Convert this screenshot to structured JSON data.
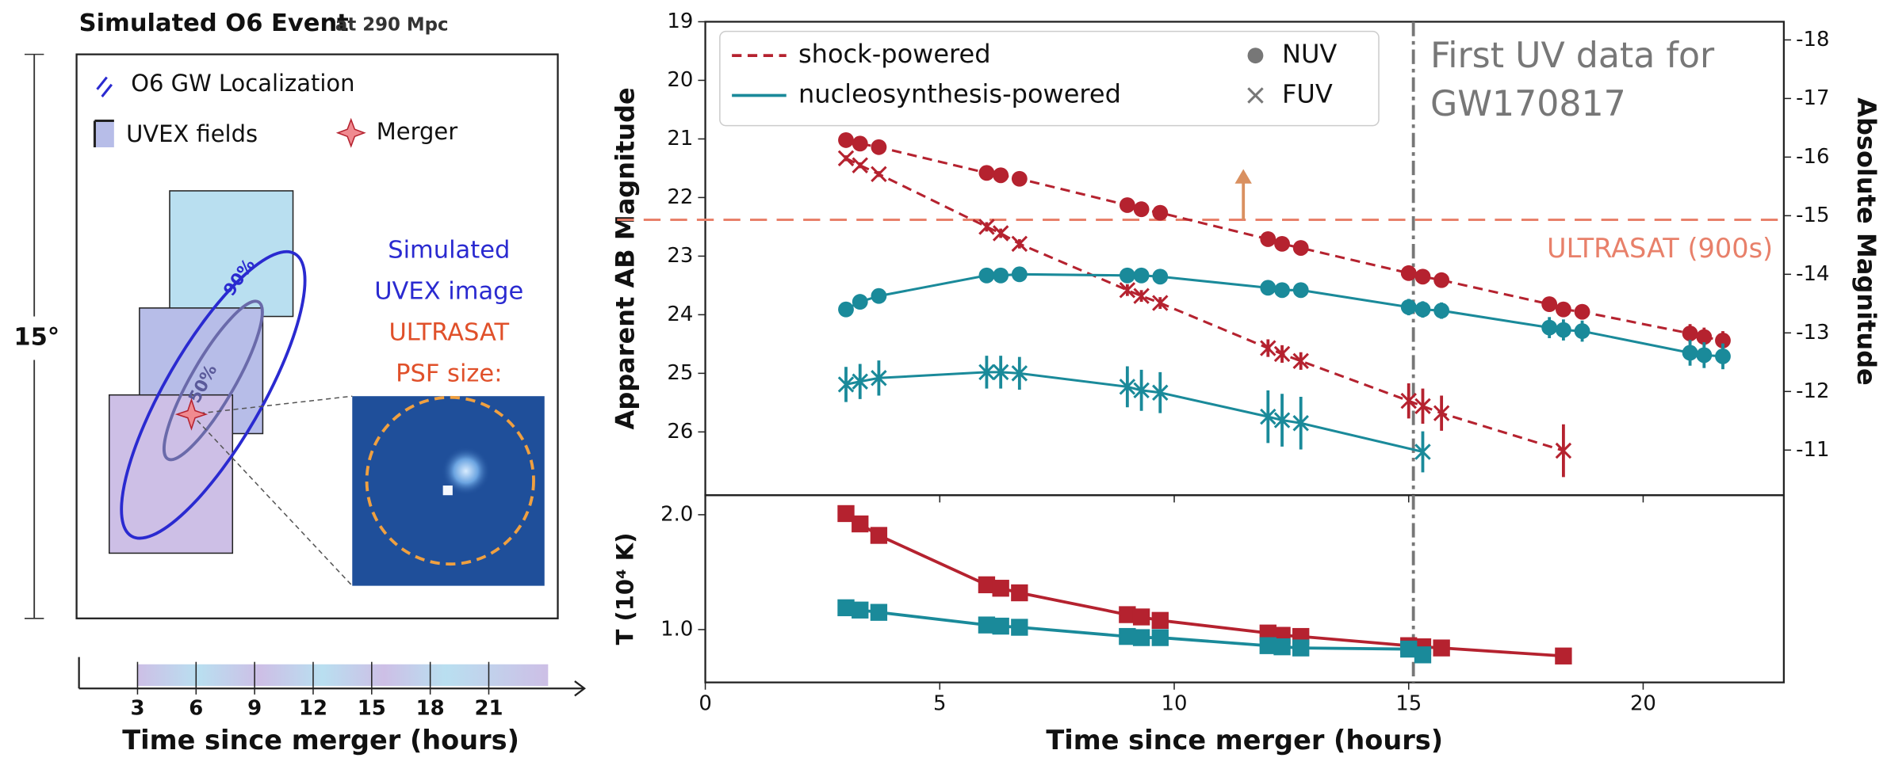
{
  "panel": {
    "title": "Simulated O6 Event",
    "subtitle": "at 290 Mpc",
    "legend": [
      "O6 GW Localization",
      "UVEX fields",
      "Merger"
    ],
    "scale_label": "15°",
    "contour_labels": [
      "90%",
      "50%"
    ],
    "image_caption": [
      "Simulated",
      "UVEX image"
    ],
    "psf_caption": [
      "ULTRASAT",
      "PSF size:"
    ]
  },
  "chart_data": [
    {
      "type": "line",
      "ylabel": "Apparent AB Magnitude",
      "y2label": "Absolute Magnitude",
      "xlim": [
        0,
        23
      ],
      "xticks": [
        0,
        5,
        10,
        15,
        20
      ],
      "ylim": [
        27.08,
        19
      ],
      "yticks": [
        19,
        20,
        21,
        22,
        23,
        24,
        25,
        26
      ],
      "y2lim": [
        -10.23,
        -18.31
      ],
      "y2ticks": [
        -18,
        -17,
        -16,
        -15,
        -14,
        -13,
        -12,
        -11
      ],
      "markers": [
        {
          "name": "NUV",
          "shape": "circle"
        },
        {
          "name": "FUV",
          "shape": "x"
        }
      ],
      "series": [
        {
          "name": "shock-powered",
          "color": "#b5222f",
          "dashed": true,
          "NUV": {
            "x": [
              3.0,
              3.3,
              3.7,
              6.0,
              6.3,
              6.7,
              9.0,
              9.3,
              9.7,
              12.0,
              12.3,
              12.7,
              15.0,
              15.3,
              15.7,
              18.0,
              18.3,
              18.7,
              21.0,
              21.3,
              21.7
            ],
            "values": [
              21.02,
              21.08,
              21.14,
              21.58,
              21.62,
              21.68,
              22.13,
              22.2,
              22.26,
              22.71,
              22.79,
              22.86,
              23.29,
              23.35,
              23.41,
              23.82,
              23.91,
              23.95,
              24.32,
              24.38,
              24.44
            ],
            "errors": [
              0.03,
              0.03,
              0.03,
              0.04,
              0.04,
              0.04,
              0.05,
              0.05,
              0.05,
              0.07,
              0.07,
              0.07,
              0.09,
              0.09,
              0.09,
              0.12,
              0.12,
              0.12,
              0.16,
              0.16,
              0.16
            ]
          },
          "FUV": {
            "x": [
              3.0,
              3.3,
              3.7,
              6.0,
              6.3,
              6.7,
              9.0,
              9.3,
              9.7,
              12.0,
              12.3,
              12.7,
              15.0,
              15.3,
              15.7,
              18.3
            ],
            "values": [
              21.33,
              21.45,
              21.6,
              22.5,
              22.61,
              22.79,
              23.58,
              23.68,
              23.8,
              24.57,
              24.67,
              24.79,
              25.47,
              25.56,
              25.68,
              26.32
            ],
            "errors": [
              0.05,
              0.05,
              0.05,
              0.08,
              0.08,
              0.08,
              0.1,
              0.1,
              0.1,
              0.15,
              0.15,
              0.15,
              0.3,
              0.3,
              0.3,
              0.45
            ]
          }
        },
        {
          "name": "nucleosynthesis-powered",
          "color": "#1a8a9a",
          "dashed": false,
          "NUV": {
            "x": [
              3.0,
              3.3,
              3.7,
              6.0,
              6.3,
              6.7,
              9.0,
              9.3,
              9.7,
              12.0,
              12.3,
              12.7,
              15.0,
              15.3,
              15.7,
              18.0,
              18.3,
              18.7,
              21.0,
              21.3,
              21.7
            ],
            "values": [
              23.91,
              23.78,
              23.68,
              23.33,
              23.33,
              23.31,
              23.33,
              23.33,
              23.35,
              23.54,
              23.58,
              23.58,
              23.87,
              23.91,
              23.93,
              24.22,
              24.26,
              24.28,
              24.65,
              24.69,
              24.71
            ],
            "errors": [
              0.12,
              0.12,
              0.12,
              0.08,
              0.08,
              0.08,
              0.08,
              0.08,
              0.08,
              0.1,
              0.1,
              0.1,
              0.14,
              0.14,
              0.14,
              0.18,
              0.18,
              0.18,
              0.22,
              0.22,
              0.22
            ]
          },
          "FUV": {
            "x": [
              3.0,
              3.3,
              3.7,
              6.0,
              6.3,
              6.7,
              9.0,
              9.3,
              9.7,
              12.0,
              12.3,
              12.7,
              15.3
            ],
            "values": [
              25.19,
              25.14,
              25.08,
              24.98,
              24.98,
              25.0,
              25.23,
              25.29,
              25.33,
              25.74,
              25.8,
              25.85,
              26.34
            ],
            "errors": [
              0.3,
              0.3,
              0.3,
              0.28,
              0.28,
              0.28,
              0.35,
              0.35,
              0.35,
              0.45,
              0.45,
              0.45,
              0.35
            ]
          }
        }
      ],
      "threshold": {
        "label": "ULTRASAT (900s)",
        "value": 22.38,
        "color": "#e8806a"
      },
      "vline": {
        "value": 15.1,
        "label": [
          "First UV data for",
          "GW170817"
        ],
        "color": "#777777"
      }
    },
    {
      "type": "line",
      "ylabel": "T (10⁴ K)",
      "xlabel": "Time since merger (hours)",
      "xlim": [
        0,
        23
      ],
      "xticks": [
        0,
        5,
        10,
        15,
        20
      ],
      "ylim": [
        0.54,
        2.17
      ],
      "yticks": [
        {
          "value": 1,
          "label": "1.0"
        },
        {
          "value": 2,
          "label": "2.0"
        }
      ],
      "series": [
        {
          "color": "#b5222f",
          "x": [
            3.0,
            3.3,
            3.7,
            6.0,
            6.3,
            6.7,
            9.0,
            9.3,
            9.7,
            12.0,
            12.3,
            12.7,
            15.0,
            15.3,
            15.7,
            18.3
          ],
          "values": [
            2.01,
            1.92,
            1.82,
            1.39,
            1.36,
            1.32,
            1.13,
            1.11,
            1.08,
            0.97,
            0.95,
            0.94,
            0.86,
            0.85,
            0.84,
            0.77
          ]
        },
        {
          "color": "#1a8a9a",
          "x": [
            3.0,
            3.3,
            3.7,
            6.0,
            6.3,
            6.7,
            9.0,
            9.3,
            9.7,
            12.0,
            12.3,
            12.7,
            15.0,
            15.3
          ],
          "values": [
            1.19,
            1.17,
            1.15,
            1.04,
            1.03,
            1.02,
            0.94,
            0.93,
            0.93,
            0.86,
            0.85,
            0.84,
            0.83,
            0.78
          ]
        }
      ],
      "vline": {
        "value": 15.1,
        "color": "#777777"
      }
    },
    {
      "type": "timeline",
      "xlabel": "Time since merger (hours)",
      "xlim": [
        0,
        25.9
      ],
      "xticks": [
        3,
        6,
        9,
        12,
        15,
        18,
        21
      ]
    }
  ]
}
